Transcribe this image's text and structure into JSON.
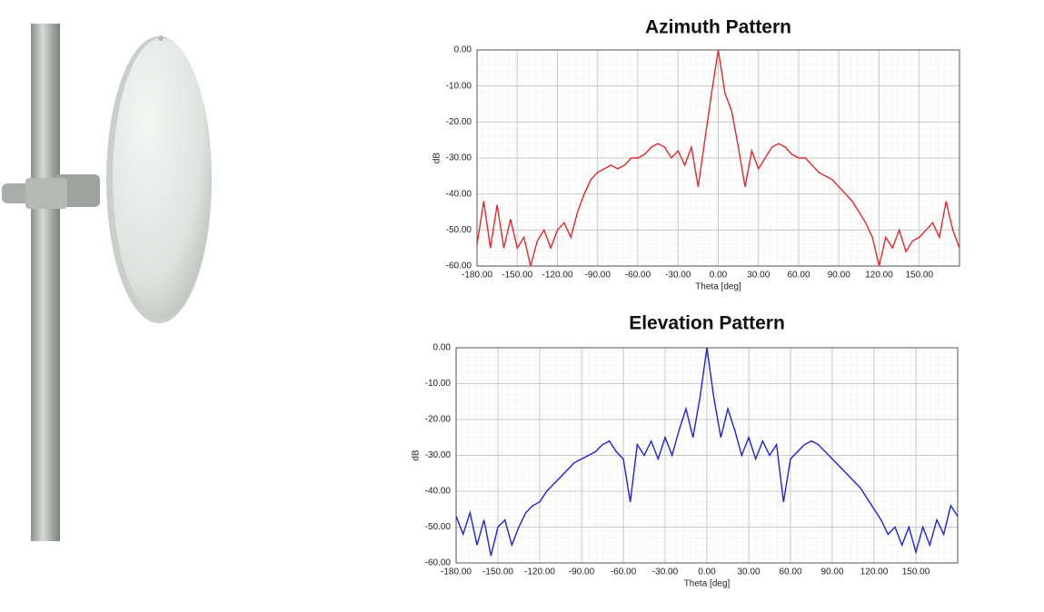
{
  "chart_data": [
    {
      "type": "line",
      "title": "Azimuth Pattern",
      "x_label": "Theta [deg]",
      "y_label": "dB",
      "x": [
        -180,
        -175,
        -170,
        -165,
        -160,
        -155,
        -150,
        -145,
        -140,
        -135,
        -130,
        -125,
        -120,
        -115,
        -110,
        -105,
        -100,
        -95,
        -90,
        -85,
        -80,
        -75,
        -70,
        -65,
        -60,
        -55,
        -50,
        -45,
        -40,
        -35,
        -30,
        -25,
        -20,
        -15,
        -10,
        -5,
        0,
        5,
        10,
        15,
        20,
        25,
        30,
        35,
        40,
        45,
        50,
        55,
        60,
        65,
        70,
        75,
        80,
        85,
        90,
        95,
        100,
        105,
        110,
        115,
        120,
        125,
        130,
        135,
        140,
        145,
        150,
        155,
        160,
        165,
        170,
        175,
        180
      ],
      "series": [
        {
          "color": "#e8262a",
          "values": [
            -54,
            -42,
            -55,
            -43,
            -55,
            -47,
            -55,
            -52,
            -60,
            -53,
            -50,
            -55,
            -50,
            -48,
            -52,
            -45,
            -40,
            -36,
            -34,
            -33,
            -32,
            -33,
            -32,
            -30,
            -30,
            -29,
            -27,
            -26,
            -27,
            -30,
            -28,
            -32,
            -27,
            -38,
            -25,
            -12,
            0,
            -12,
            -17,
            -27,
            -38,
            -28,
            -33,
            -30,
            -27,
            -26,
            -27,
            -29,
            -30,
            -30,
            -32,
            -34,
            -35,
            -36,
            -38,
            -40,
            -42,
            -45,
            -48,
            -52,
            -60,
            -52,
            -55,
            -50,
            -56,
            -53,
            -52,
            -50,
            -48,
            -52,
            -42,
            -50,
            -55
          ]
        }
      ],
      "xlim": [
        -180,
        180
      ],
      "xticks": [
        {
          "value": -180,
          "label": "-180.00"
        },
        {
          "value": -150,
          "label": "-150.00"
        },
        {
          "value": -120,
          "label": "-120.00"
        },
        {
          "value": -90,
          "label": "-90.00"
        },
        {
          "value": -60,
          "label": "-60.00"
        },
        {
          "value": -30,
          "label": "-30.00"
        },
        {
          "value": 0,
          "label": "0.00"
        },
        {
          "value": 30,
          "label": "30.00"
        },
        {
          "value": 60,
          "label": "60.00"
        },
        {
          "value": 90,
          "label": "90.00"
        },
        {
          "value": 120,
          "label": "120.00"
        },
        {
          "value": 150,
          "label": "150.00"
        }
      ],
      "ylim": [
        -60,
        0
      ],
      "yticks": [
        {
          "value": 0,
          "label": "0.00"
        },
        {
          "value": -10,
          "label": "-10.00"
        },
        {
          "value": -20,
          "label": "-20.00"
        },
        {
          "value": -30,
          "label": "-30.00"
        },
        {
          "value": -40,
          "label": "-40.00"
        },
        {
          "value": -50,
          "label": "-50.00"
        },
        {
          "value": -60,
          "label": "-60.00"
        }
      ],
      "grid": true
    },
    {
      "type": "line",
      "title": "Elevation Pattern",
      "x_label": "Theta [deg]",
      "y_label": "dB",
      "x": [
        -180,
        -175,
        -170,
        -165,
        -160,
        -155,
        -150,
        -145,
        -140,
        -135,
        -130,
        -125,
        -120,
        -115,
        -110,
        -105,
        -100,
        -95,
        -90,
        -85,
        -80,
        -75,
        -70,
        -65,
        -60,
        -55,
        -50,
        -45,
        -40,
        -35,
        -30,
        -25,
        -20,
        -15,
        -10,
        -5,
        0,
        5,
        10,
        15,
        20,
        25,
        30,
        35,
        40,
        45,
        50,
        55,
        60,
        65,
        70,
        75,
        80,
        85,
        90,
        95,
        100,
        105,
        110,
        115,
        120,
        125,
        130,
        135,
        140,
        145,
        150,
        155,
        160,
        165,
        170,
        175,
        180
      ],
      "series": [
        {
          "color": "#1f1fe0",
          "values": [
            -47,
            -52,
            -46,
            -55,
            -48,
            -58,
            -50,
            -48,
            -55,
            -50,
            -46,
            -44,
            -43,
            -40,
            -38,
            -36,
            -34,
            -32,
            -31,
            -30,
            -29,
            -27,
            -26,
            -29,
            -31,
            -43,
            -27,
            -30,
            -26,
            -31,
            -25,
            -30,
            -23,
            -17,
            -25,
            -14,
            0,
            -14,
            -25,
            -17,
            -23,
            -30,
            -25,
            -31,
            -26,
            -30,
            -27,
            -43,
            -31,
            -29,
            -27,
            -26,
            -27,
            -29,
            -31,
            -33,
            -35,
            -37,
            -39,
            -42,
            -45,
            -48,
            -52,
            -50,
            -55,
            -50,
            -57,
            -50,
            -55,
            -48,
            -52,
            -44,
            -47
          ]
        }
      ],
      "xlim": [
        -180,
        180
      ],
      "xticks": [
        {
          "value": -180,
          "label": "-180.00"
        },
        {
          "value": -150,
          "label": "-150.00"
        },
        {
          "value": -120,
          "label": "-120.00"
        },
        {
          "value": -90,
          "label": "-90.00"
        },
        {
          "value": -60,
          "label": "-60.00"
        },
        {
          "value": -30,
          "label": "-30.00"
        },
        {
          "value": 0,
          "label": "0.00"
        },
        {
          "value": 30,
          "label": "30.00"
        },
        {
          "value": 60,
          "label": "60.00"
        },
        {
          "value": 90,
          "label": "90.00"
        },
        {
          "value": 120,
          "label": "120.00"
        },
        {
          "value": 150,
          "label": "150.00"
        }
      ],
      "ylim": [
        -60,
        0
      ],
      "yticks": [
        {
          "value": 0,
          "label": "0.00"
        },
        {
          "value": -10,
          "label": "-10.00"
        },
        {
          "value": -20,
          "label": "-20.00"
        },
        {
          "value": -30,
          "label": "-30.00"
        },
        {
          "value": -40,
          "label": "-40.00"
        },
        {
          "value": -50,
          "label": "-50.00"
        },
        {
          "value": -60,
          "label": "-60.00"
        }
      ],
      "grid": true
    }
  ]
}
